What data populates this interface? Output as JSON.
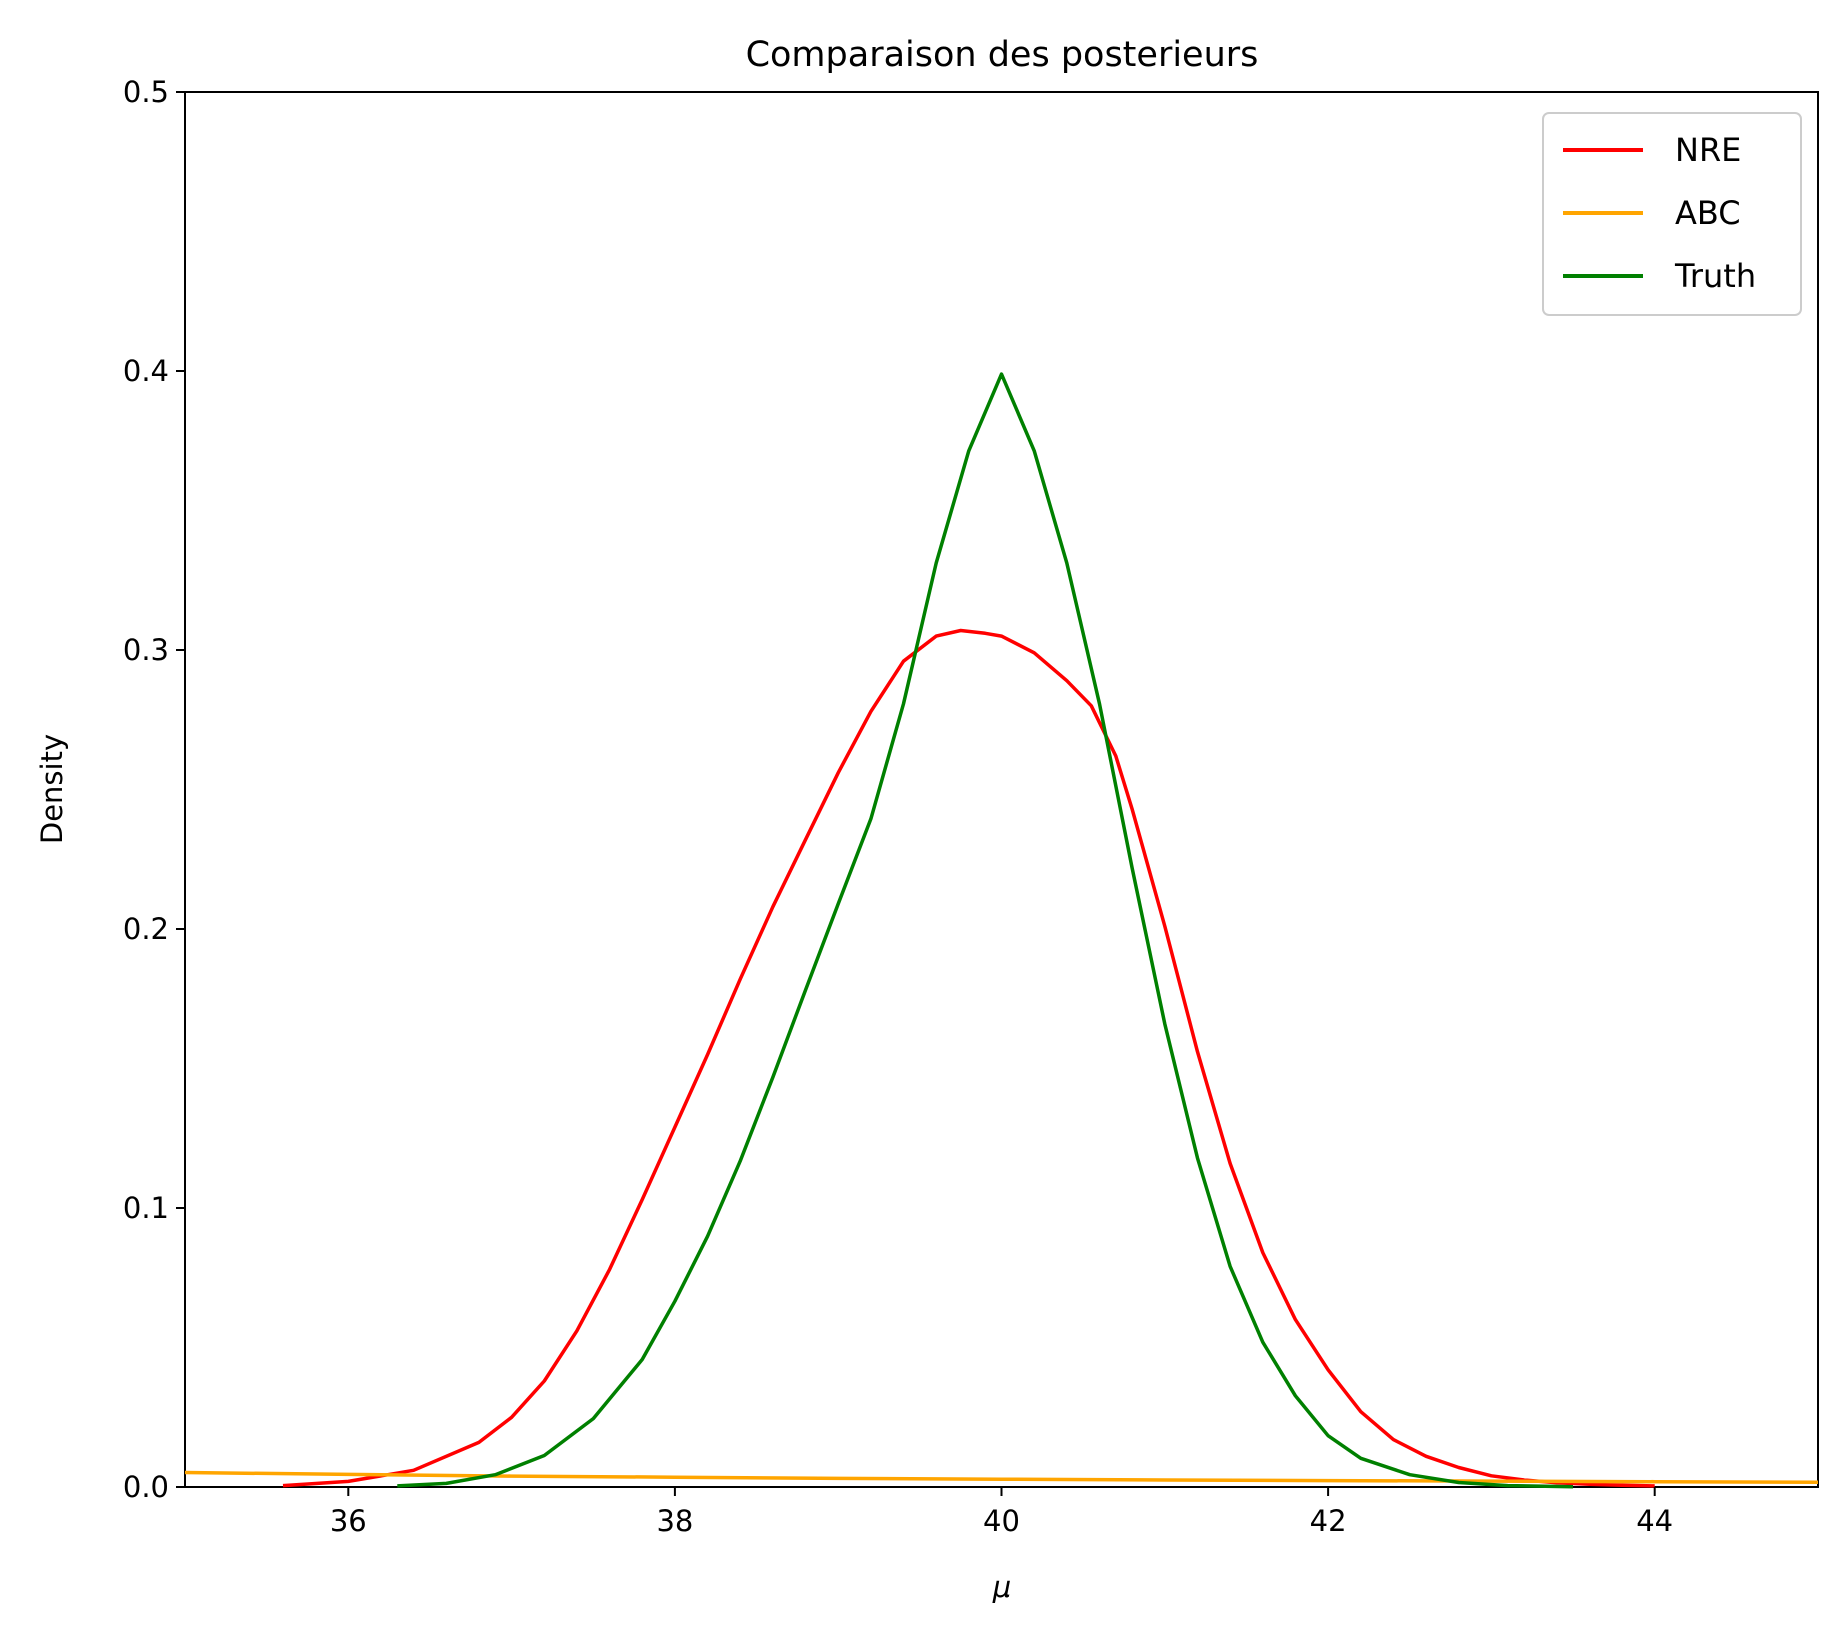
{
  "chart_data": {
    "type": "line",
    "title": "Comparaison des posterieurs",
    "xlabel": "μ",
    "ylabel": "Density",
    "xlim": [
      35,
      45
    ],
    "ylim": [
      0,
      0.5
    ],
    "xticks": [
      36,
      38,
      40,
      42,
      44
    ],
    "yticks": [
      0.0,
      0.1,
      0.2,
      0.3,
      0.4,
      0.5
    ],
    "xtick_labels": [
      "36",
      "38",
      "40",
      "42",
      "44"
    ],
    "ytick_labels": [
      "0.0",
      "0.1",
      "0.2",
      "0.3",
      "0.4",
      "0.5"
    ],
    "grid": false,
    "legend_position": "top-right",
    "series": [
      {
        "name": "NRE",
        "color": "#ff0000",
        "x": [
          35.6,
          36.0,
          36.4,
          36.8,
          37.0,
          37.2,
          37.4,
          37.6,
          37.8,
          38.0,
          38.2,
          38.4,
          38.6,
          38.8,
          39.0,
          39.2,
          39.4,
          39.6,
          39.75,
          39.9,
          40.0,
          40.2,
          40.4,
          40.55,
          40.7,
          40.8,
          41.0,
          41.2,
          41.4,
          41.6,
          41.8,
          42.0,
          42.2,
          42.4,
          42.6,
          42.8,
          43.0,
          43.2,
          43.4,
          43.6,
          43.8,
          44.0
        ],
        "y": [
          0.0005,
          0.002,
          0.006,
          0.016,
          0.025,
          0.038,
          0.056,
          0.078,
          0.103,
          0.129,
          0.155,
          0.182,
          0.208,
          0.232,
          0.256,
          0.278,
          0.296,
          0.305,
          0.307,
          0.306,
          0.305,
          0.299,
          0.289,
          0.28,
          0.262,
          0.243,
          0.201,
          0.156,
          0.116,
          0.084,
          0.06,
          0.042,
          0.027,
          0.017,
          0.011,
          0.007,
          0.004,
          0.0025,
          0.0015,
          0.001,
          0.0006,
          0.0004
        ]
      },
      {
        "name": "ABC",
        "color": "#ffa500",
        "x": [
          35.0,
          36.0,
          37.0,
          38.0,
          39.0,
          40.0,
          41.0,
          42.0,
          43.0,
          44.0,
          45.0
        ],
        "y": [
          0.0052,
          0.0045,
          0.0039,
          0.0035,
          0.0031,
          0.0028,
          0.0025,
          0.0023,
          0.0021,
          0.0019,
          0.0017
        ]
      },
      {
        "name": "Truth",
        "color": "#008000",
        "x": [
          36.3,
          36.6,
          36.9,
          37.2,
          37.5,
          37.8,
          38.0,
          38.2,
          38.4,
          38.6,
          38.8,
          39.0,
          39.2,
          39.4,
          39.6,
          39.8,
          40.0,
          40.2,
          40.4,
          40.6,
          40.8,
          41.0,
          41.2,
          41.4,
          41.6,
          41.8,
          42.0,
          42.2,
          42.5,
          42.8,
          43.1,
          43.5
        ],
        "y": [
          0.0004,
          0.0013,
          0.0044,
          0.0113,
          0.0245,
          0.0457,
          0.0666,
          0.0899,
          0.1168,
          0.1469,
          0.1781,
          0.209,
          0.2395,
          0.2807,
          0.3312,
          0.3714,
          0.3989,
          0.3714,
          0.3312,
          0.2807,
          0.2219,
          0.166,
          0.1179,
          0.0791,
          0.0519,
          0.0327,
          0.0184,
          0.0103,
          0.0044,
          0.0016,
          0.0005,
          0.0001
        ]
      }
    ]
  }
}
